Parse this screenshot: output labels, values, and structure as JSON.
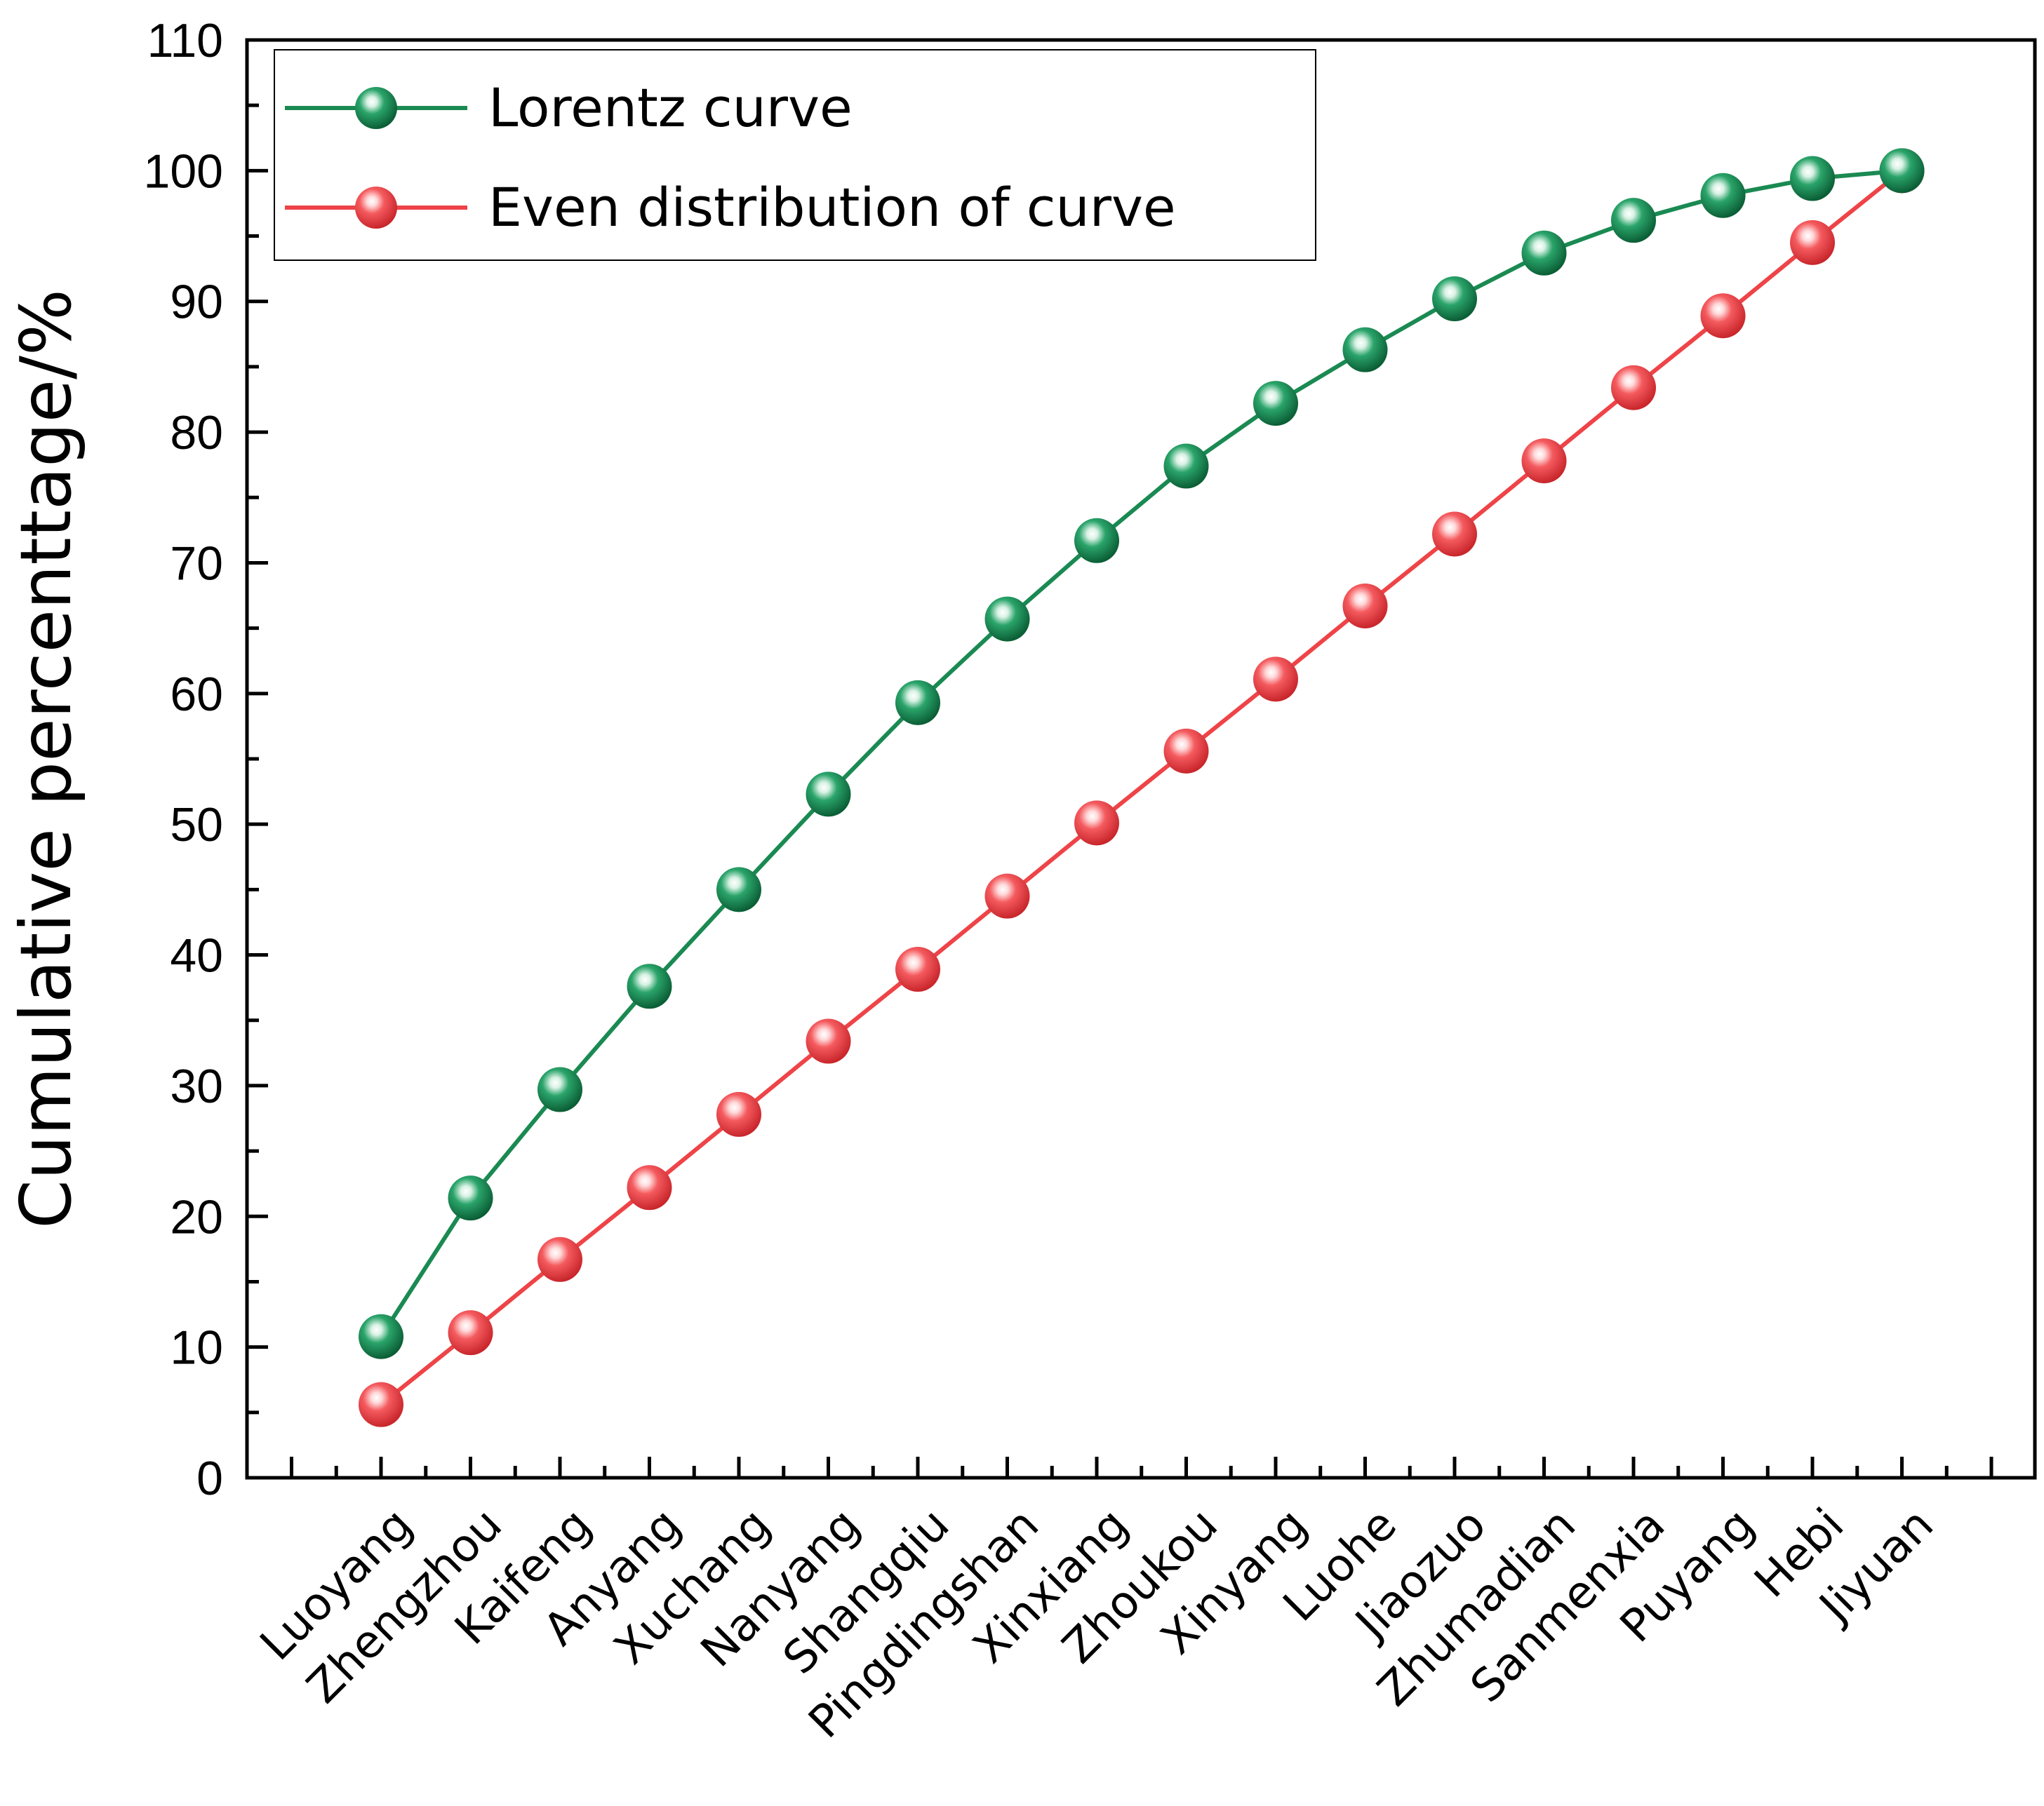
{
  "chart_data": {
    "type": "line",
    "title": "",
    "xlabel": "",
    "ylabel": "Cumulative percenttage/%",
    "ylim": [
      0,
      110
    ],
    "yticks": [
      "0",
      "10",
      "20",
      "30",
      "40",
      "50",
      "60",
      "70",
      "80",
      "90",
      "100",
      "110"
    ],
    "grid": false,
    "legend_position": "top-left",
    "categories": [
      "Luoyang",
      "Zhengzhou",
      "Kaifeng",
      "Anyang",
      "Xuchang",
      "Nanyang",
      "Shangqiu",
      "Pingdingshan",
      "Xinxiang",
      "Zhoukou",
      "Xinyang",
      "Luohe",
      "Jiaozuo",
      "Zhumadian",
      "Sanmenxia",
      "Puyang",
      "Hebi",
      "Jiyuan"
    ],
    "series": [
      {
        "name": "Lorentz curve",
        "color": "#1a8a52",
        "values": [
          10.8,
          21.4,
          29.7,
          37.6,
          45.0,
          52.3,
          59.3,
          65.7,
          71.7,
          77.4,
          82.2,
          86.3,
          90.2,
          93.7,
          96.2,
          98.1,
          99.4,
          100.0
        ]
      },
      {
        "name": "Even distribution of curve",
        "color": "#ee4448",
        "values": [
          5.6,
          11.1,
          16.7,
          22.2,
          27.8,
          33.4,
          38.9,
          44.5,
          50.1,
          55.6,
          61.1,
          66.7,
          72.2,
          77.8,
          83.4,
          88.9,
          94.5,
          100.0
        ]
      }
    ]
  }
}
